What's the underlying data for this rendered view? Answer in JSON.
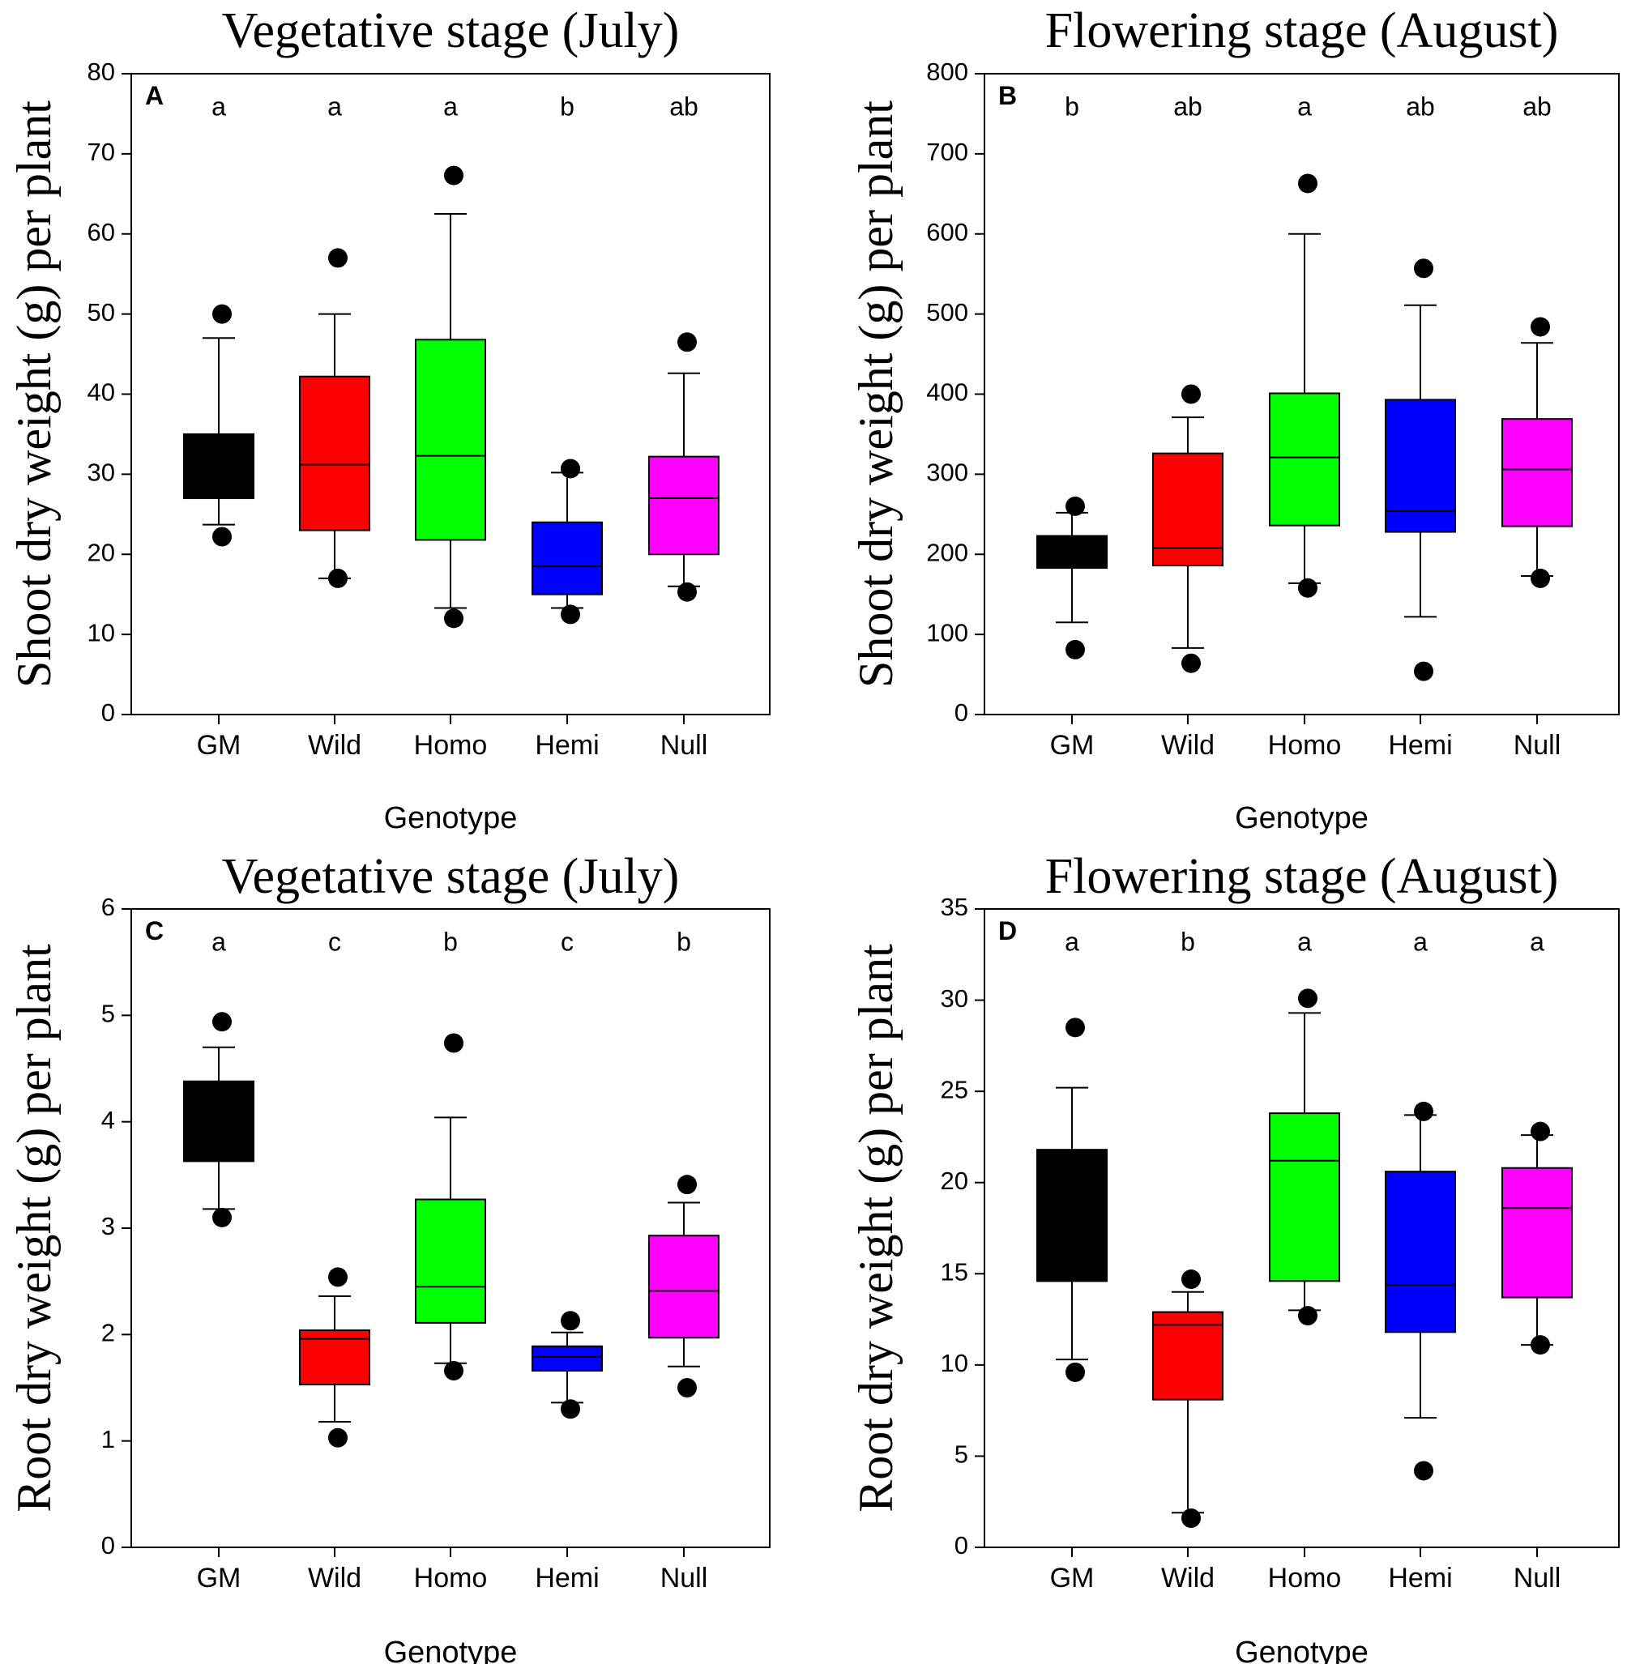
{
  "chart_data": [
    {
      "type": "box",
      "panel": "A",
      "title": "Vegetative stage (July)",
      "ylabel": "Shoot dry weight (g) per plant",
      "xlabel": "Genotype",
      "ylim": [
        0,
        80
      ],
      "yticks": [
        0,
        10,
        20,
        30,
        40,
        50,
        60,
        70,
        80
      ],
      "categories": [
        "GM",
        "Wild",
        "Homo",
        "Hemi",
        "Null"
      ],
      "letters": [
        "a",
        "a",
        "a",
        "b",
        "ab"
      ],
      "colors": [
        "#000000",
        "#ff0000",
        "#00ff00",
        "#0000ff",
        "#ff00ff"
      ],
      "boxes": [
        {
          "whisker_low": 23.7,
          "q1": 27.0,
          "median": 27.0,
          "q3": 35.0,
          "whisker_high": 47.0,
          "outliers": [
            22.2,
            50.0
          ]
        },
        {
          "whisker_low": 17.0,
          "q1": 23.0,
          "median": 31.2,
          "q3": 42.2,
          "whisker_high": 50.0,
          "outliers": [
            17.0,
            57.0
          ]
        },
        {
          "whisker_low": 13.3,
          "q1": 21.8,
          "median": 32.3,
          "q3": 46.8,
          "whisker_high": 62.5,
          "outliers": [
            12.0,
            67.3
          ]
        },
        {
          "whisker_low": 13.3,
          "q1": 15.0,
          "median": 18.5,
          "q3": 24.0,
          "whisker_high": 30.2,
          "outliers": [
            12.5,
            30.7
          ]
        },
        {
          "whisker_low": 16.0,
          "q1": 20.0,
          "median": 27.0,
          "q3": 32.2,
          "whisker_high": 42.6,
          "outliers": [
            15.3,
            46.5
          ]
        }
      ]
    },
    {
      "type": "box",
      "panel": "B",
      "title": "Flowering stage (August)",
      "ylabel": "Shoot dry weight (g) per plant",
      "xlabel": "Genotype",
      "ylim": [
        0,
        800
      ],
      "yticks": [
        0,
        100,
        200,
        300,
        400,
        500,
        600,
        700,
        800
      ],
      "categories": [
        "GM",
        "Wild",
        "Homo",
        "Hemi",
        "Null"
      ],
      "letters": [
        "b",
        "ab",
        "a",
        "ab",
        "ab"
      ],
      "colors": [
        "#000000",
        "#ff0000",
        "#00ff00",
        "#0000ff",
        "#ff00ff"
      ],
      "boxes": [
        {
          "whisker_low": 115,
          "q1": 183,
          "median": 183,
          "q3": 223,
          "whisker_high": 252,
          "outliers": [
            81,
            260
          ]
        },
        {
          "whisker_low": 83,
          "q1": 186,
          "median": 208,
          "q3": 326,
          "whisker_high": 371,
          "outliers": [
            64,
            400
          ]
        },
        {
          "whisker_low": 164,
          "q1": 236,
          "median": 321,
          "q3": 401,
          "whisker_high": 600,
          "outliers": [
            158,
            663
          ]
        },
        {
          "whisker_low": 122,
          "q1": 228,
          "median": 254,
          "q3": 393,
          "whisker_high": 511,
          "outliers": [
            54,
            557
          ]
        },
        {
          "whisker_low": 173,
          "q1": 235,
          "median": 306,
          "q3": 369,
          "whisker_high": 464,
          "outliers": [
            170,
            484
          ]
        }
      ]
    },
    {
      "type": "box",
      "panel": "C",
      "title": "Vegetative stage (July)",
      "ylabel": "Root dry weight (g) per plant",
      "xlabel": "Genotype",
      "ylim": [
        0,
        6
      ],
      "yticks": [
        0,
        1,
        2,
        3,
        4,
        5,
        6
      ],
      "categories": [
        "GM",
        "Wild",
        "Homo",
        "Hemi",
        "Null"
      ],
      "letters": [
        "a",
        "c",
        "b",
        "c",
        "b"
      ],
      "colors": [
        "#000000",
        "#ff0000",
        "#00ff00",
        "#0000ff",
        "#ff00ff"
      ],
      "boxes": [
        {
          "whisker_low": 3.18,
          "q1": 3.63,
          "median": 3.63,
          "q3": 4.38,
          "whisker_high": 4.7,
          "outliers": [
            3.1,
            4.94
          ]
        },
        {
          "whisker_low": 1.18,
          "q1": 1.53,
          "median": 1.96,
          "q3": 2.04,
          "whisker_high": 2.36,
          "outliers": [
            1.03,
            2.54
          ]
        },
        {
          "whisker_low": 1.73,
          "q1": 2.11,
          "median": 2.45,
          "q3": 3.27,
          "whisker_high": 4.04,
          "outliers": [
            1.66,
            4.74
          ]
        },
        {
          "whisker_low": 1.36,
          "q1": 1.66,
          "median": 1.79,
          "q3": 1.89,
          "whisker_high": 2.02,
          "outliers": [
            1.3,
            2.13
          ]
        },
        {
          "whisker_low": 1.7,
          "q1": 1.97,
          "median": 2.41,
          "q3": 2.93,
          "whisker_high": 3.24,
          "outliers": [
            1.5,
            3.41
          ]
        }
      ]
    },
    {
      "type": "box",
      "panel": "D",
      "title": "Flowering stage (August)",
      "ylabel": "Root dry weight (g) per plant",
      "xlabel": "Genotype",
      "ylim": [
        0,
        35
      ],
      "yticks": [
        0,
        5,
        10,
        15,
        20,
        25,
        30,
        35
      ],
      "categories": [
        "GM",
        "Wild",
        "Homo",
        "Hemi",
        "Null"
      ],
      "letters": [
        "a",
        "b",
        "a",
        "a",
        "a"
      ],
      "colors": [
        "#000000",
        "#ff0000",
        "#00ff00",
        "#0000ff",
        "#ff00ff"
      ],
      "boxes": [
        {
          "whisker_low": 10.3,
          "q1": 14.6,
          "median": 14.6,
          "q3": 21.8,
          "whisker_high": 25.2,
          "outliers": [
            9.6,
            28.5
          ]
        },
        {
          "whisker_low": 1.9,
          "q1": 8.1,
          "median": 12.2,
          "q3": 12.9,
          "whisker_high": 14.0,
          "outliers": [
            1.6,
            14.7
          ]
        },
        {
          "whisker_low": 13.0,
          "q1": 14.6,
          "median": 21.2,
          "q3": 23.8,
          "whisker_high": 29.3,
          "outliers": [
            12.7,
            30.1
          ]
        },
        {
          "whisker_low": 7.1,
          "q1": 11.8,
          "median": 14.4,
          "q3": 20.6,
          "whisker_high": 23.7,
          "outliers": [
            4.2,
            23.9
          ]
        },
        {
          "whisker_low": 11.1,
          "q1": 13.7,
          "median": 18.6,
          "q3": 20.8,
          "whisker_high": 22.6,
          "outliers": [
            11.1,
            22.8
          ]
        }
      ]
    }
  ]
}
